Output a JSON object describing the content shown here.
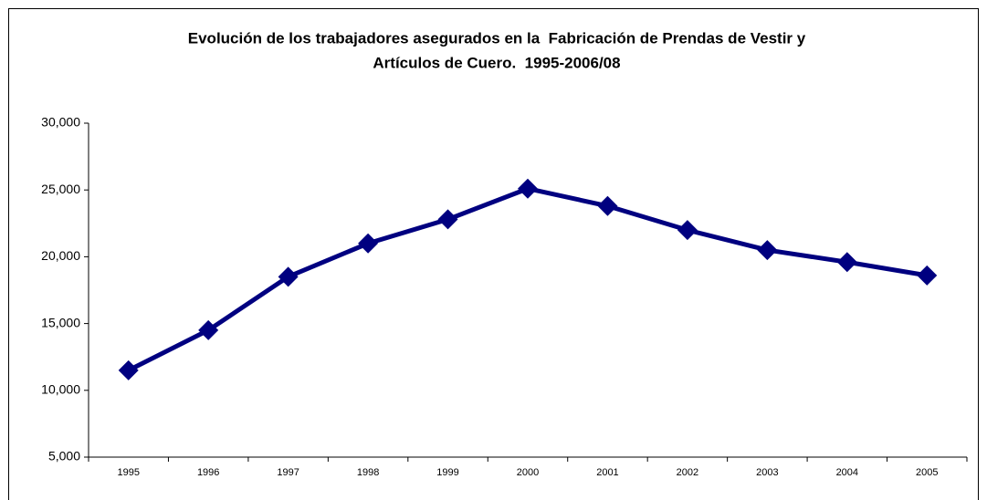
{
  "chart_data": {
    "type": "line",
    "title": [
      "Evolución de los trabajadores asegurados en la  Fabricación de Prendas de Vestir y",
      "Artículos de Cuero.  1995-2006/08"
    ],
    "categories": [
      "1995",
      "1996",
      "1997",
      "1998",
      "1999",
      "2000",
      "2001",
      "2002",
      "2003",
      "2004",
      "2005"
    ],
    "values": [
      11500,
      14500,
      18500,
      21000,
      22800,
      25100,
      23800,
      22000,
      20500,
      19600,
      18600
    ],
    "color": "#000080",
    "ylim": [
      5000,
      30000
    ],
    "yticks": [
      {
        "value": 5000,
        "label": "5,000"
      },
      {
        "value": 10000,
        "label": "10,000"
      },
      {
        "value": 15000,
        "label": "15,000"
      },
      {
        "value": 20000,
        "label": "20,000"
      },
      {
        "value": 25000,
        "label": "25,000"
      },
      {
        "value": 30000,
        "label": "30,000"
      }
    ],
    "grid": false
  }
}
